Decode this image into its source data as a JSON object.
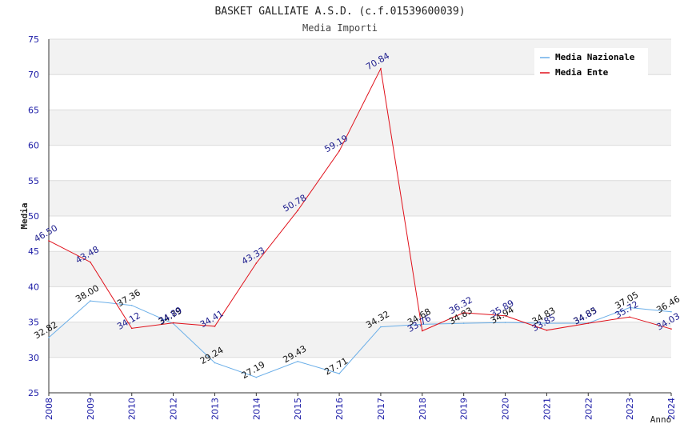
{
  "chart_data": {
    "type": "line",
    "title": "BASKET GALLIATE A.S.D. (c.f.01539600039)",
    "subtitle": "Media Importi",
    "xlabel": "Anno",
    "ylabel": "Media",
    "ylim": [
      25,
      75
    ],
    "yticks": [
      "25",
      "30",
      "35",
      "40",
      "45",
      "50",
      "55",
      "60",
      "65",
      "70",
      "75"
    ],
    "categories": [
      "2008",
      "2009",
      "2010",
      "2012",
      "2013",
      "2014",
      "2015",
      "2016",
      "2017",
      "2018",
      "2019",
      "2020",
      "2021",
      "2022",
      "2023",
      "2024"
    ],
    "grid": true,
    "legend_position": "top-right",
    "series": [
      {
        "name": "Media Nazionale",
        "color": "#6aaee8",
        "values": [
          32.82,
          38.0,
          37.36,
          34.79,
          29.24,
          27.19,
          29.43,
          27.71,
          34.32,
          34.68,
          34.83,
          34.94,
          34.83,
          34.85,
          37.05,
          36.46
        ],
        "labels": [
          "32.82",
          "38.00",
          "37.36",
          "34.79",
          "29.24",
          "27.19",
          "29.43",
          "27.71",
          "34.32",
          "34.68",
          "34.83",
          "34.94",
          "34.83",
          "34.85",
          "37.05",
          "36.46"
        ]
      },
      {
        "name": "Media Ente",
        "color": "#e0101a",
        "values": [
          46.5,
          43.48,
          34.12,
          34.89,
          34.41,
          43.33,
          50.78,
          59.19,
          70.84,
          33.76,
          36.32,
          35.89,
          33.85,
          34.83,
          35.72,
          34.03
        ],
        "labels": [
          "46.50",
          "43.48",
          "34.12",
          "34.89",
          "34.41",
          "43.33",
          "50.78",
          "59.19",
          "70.84",
          "33.76",
          "36.32",
          "35.89",
          "33.85",
          "34.83",
          "35.72",
          "34.03"
        ]
      }
    ]
  }
}
